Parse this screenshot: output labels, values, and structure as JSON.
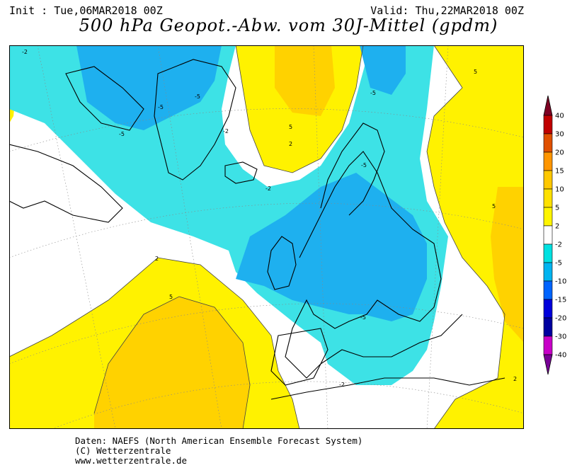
{
  "header": {
    "init": "Init : Tue,06MAR2018 00Z",
    "valid": "Valid: Thu,22MAR2018 00Z",
    "title": "500 hPa Geopot.-Abw. vom 30J-Mittel (gpdm)"
  },
  "contour_labels": [
    "-2",
    "-5",
    "2",
    "5"
  ],
  "legend": {
    "ticks": [
      "40",
      "30",
      "20",
      "15",
      "10",
      "5",
      "2",
      "-2",
      "-5",
      "-10",
      "-15",
      "-20",
      "-30",
      "-40"
    ],
    "colors": [
      "#7e0023",
      "#c00000",
      "#e05000",
      "#ff9600",
      "#ffc800",
      "#ffe100",
      "#fff500",
      "#ffffff",
      "#00e1e1",
      "#00b4f0",
      "#0064ff",
      "#0000dc",
      "#0000a0",
      "#c800c8",
      "#780096"
    ]
  },
  "palette": {
    "neg2": "#3de2e6",
    "neg5": "#1eb0ef",
    "pos2": "#fff200",
    "pos5": "#ffd200"
  },
  "footer": {
    "line1": "Daten: NAEFS (North American Ensemble Forecast System)",
    "line2": "(C) Wetterzentrale",
    "line3": "www.wetterzentrale.de"
  }
}
